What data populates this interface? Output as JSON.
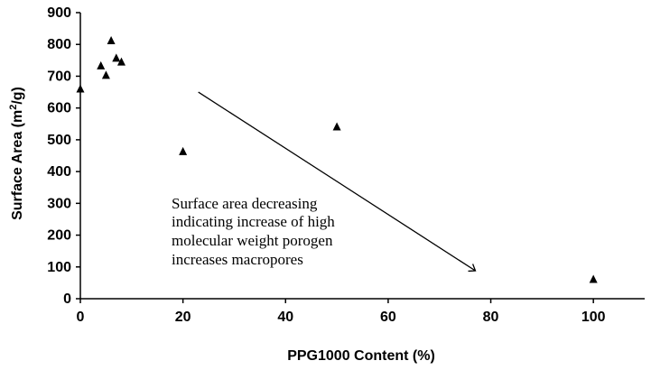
{
  "chart_data": {
    "type": "scatter",
    "title": "",
    "xlabel": "PPG1000 Content (%)",
    "ylabel_main": "Surface Area (m",
    "ylabel_sup": "2",
    "ylabel_tail": "/g)",
    "xlim": [
      0,
      110
    ],
    "ylim": [
      0,
      900
    ],
    "xticks": [
      0,
      20,
      40,
      60,
      80,
      100
    ],
    "yticks": [
      0,
      100,
      200,
      300,
      400,
      500,
      600,
      700,
      800,
      900
    ],
    "marker": "triangle",
    "marker_color": "#000000",
    "grid": false,
    "legend": "none",
    "series": [
      {
        "x": [
          0,
          4,
          5,
          6,
          7,
          8,
          20,
          50,
          100
        ],
        "y": [
          660,
          733,
          703,
          812,
          757,
          745,
          463,
          541,
          61
        ]
      }
    ],
    "annotation": {
      "lines": [
        "Surface area decreasing",
        "indicating increase of high",
        "molecular weight porogen",
        "increases macropores"
      ],
      "arrow_from": [
        23,
        650
      ],
      "arrow_to": [
        77,
        88
      ]
    }
  }
}
